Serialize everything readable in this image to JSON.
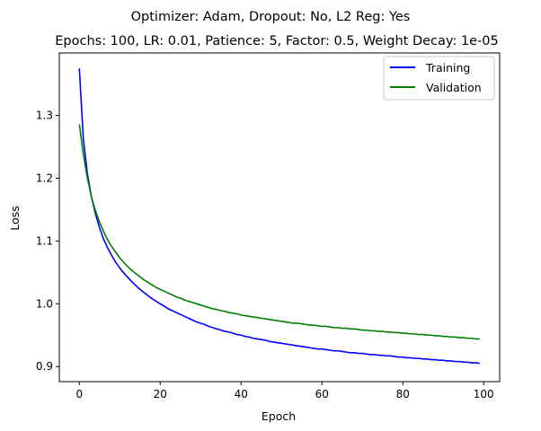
{
  "chart_data": {
    "type": "line",
    "suptitle": "Optimizer: Adam, Dropout: No, L2 Reg: Yes",
    "title": "Epochs: 100, LR: 0.01, Patience: 5, Factor: 0.5, Weight Decay: 1e-05",
    "xlabel": "Epoch",
    "ylabel": "Loss",
    "xlim": [
      -4.95,
      103.95
    ],
    "ylim": [
      0.876,
      1.3995
    ],
    "xticks": [
      0,
      20,
      40,
      60,
      80,
      100
    ],
    "yticks": [
      0.9,
      1.0,
      1.1,
      1.2,
      1.3
    ],
    "ytick_labels": [
      "0.9",
      "1.0",
      "1.1",
      "1.2",
      "1.3"
    ],
    "grid": false,
    "legend_position": "top-right",
    "x": [
      0,
      1,
      2,
      3,
      4,
      5,
      6,
      7,
      8,
      9,
      10,
      11,
      12,
      13,
      14,
      15,
      16,
      17,
      18,
      19,
      20,
      21,
      22,
      23,
      24,
      25,
      26,
      27,
      28,
      29,
      30,
      31,
      32,
      33,
      34,
      35,
      36,
      37,
      38,
      39,
      40,
      41,
      42,
      43,
      44,
      45,
      46,
      47,
      48,
      49,
      50,
      51,
      52,
      53,
      54,
      55,
      56,
      57,
      58,
      59,
      60,
      61,
      62,
      63,
      64,
      65,
      66,
      67,
      68,
      69,
      70,
      71,
      72,
      73,
      74,
      75,
      76,
      77,
      78,
      79,
      80,
      81,
      82,
      83,
      84,
      85,
      86,
      87,
      88,
      89,
      90,
      91,
      92,
      93,
      94,
      95,
      96,
      97,
      98,
      99
    ],
    "series": [
      {
        "name": "Training",
        "color": "#0000ff",
        "values": [
          1.375,
          1.262,
          1.207,
          1.17,
          1.143,
          1.121,
          1.103,
          1.089,
          1.077,
          1.066,
          1.057,
          1.049,
          1.042,
          1.035,
          1.029,
          1.023,
          1.018,
          1.013,
          1.008,
          1.004,
          1.0,
          0.996,
          0.992,
          0.989,
          0.986,
          0.983,
          0.98,
          0.977,
          0.974,
          0.971,
          0.969,
          0.967,
          0.964,
          0.962,
          0.96,
          0.958,
          0.956,
          0.955,
          0.953,
          0.951,
          0.95,
          0.948,
          0.947,
          0.945,
          0.944,
          0.943,
          0.942,
          0.94,
          0.939,
          0.938,
          0.937,
          0.936,
          0.935,
          0.934,
          0.933,
          0.932,
          0.931,
          0.93,
          0.929,
          0.928,
          0.928,
          0.927,
          0.926,
          0.925,
          0.925,
          0.924,
          0.923,
          0.922,
          0.922,
          0.921,
          0.921,
          0.92,
          0.919,
          0.919,
          0.918,
          0.918,
          0.917,
          0.917,
          0.916,
          0.915,
          0.915,
          0.914,
          0.914,
          0.913,
          0.913,
          0.912,
          0.912,
          0.911,
          0.911,
          0.91,
          0.91,
          0.909,
          0.909,
          0.908,
          0.908,
          0.907,
          0.907,
          0.906,
          0.906,
          0.905
        ]
      },
      {
        "name": "Validation",
        "color": "#008000",
        "values": [
          1.286,
          1.238,
          1.2,
          1.17,
          1.148,
          1.13,
          1.115,
          1.102,
          1.091,
          1.082,
          1.073,
          1.066,
          1.059,
          1.053,
          1.048,
          1.043,
          1.038,
          1.034,
          1.03,
          1.026,
          1.023,
          1.02,
          1.017,
          1.014,
          1.011,
          1.009,
          1.006,
          1.004,
          1.002,
          1.0,
          0.998,
          0.996,
          0.994,
          0.992,
          0.991,
          0.989,
          0.988,
          0.986,
          0.985,
          0.984,
          0.982,
          0.981,
          0.98,
          0.979,
          0.978,
          0.977,
          0.976,
          0.975,
          0.974,
          0.973,
          0.972,
          0.971,
          0.97,
          0.969,
          0.969,
          0.968,
          0.967,
          0.966,
          0.966,
          0.965,
          0.964,
          0.964,
          0.963,
          0.962,
          0.962,
          0.961,
          0.961,
          0.96,
          0.96,
          0.959,
          0.958,
          0.958,
          0.957,
          0.957,
          0.956,
          0.956,
          0.955,
          0.955,
          0.954,
          0.954,
          0.953,
          0.953,
          0.952,
          0.952,
          0.951,
          0.951,
          0.95,
          0.95,
          0.949,
          0.949,
          0.948,
          0.948,
          0.947,
          0.947,
          0.946,
          0.946,
          0.945,
          0.945,
          0.944,
          0.944
        ]
      }
    ]
  }
}
